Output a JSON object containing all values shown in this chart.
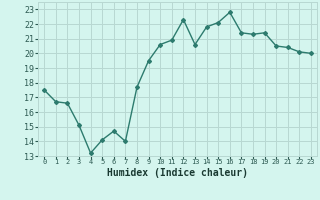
{
  "x": [
    0,
    1,
    2,
    3,
    4,
    5,
    6,
    7,
    8,
    9,
    10,
    11,
    12,
    13,
    14,
    15,
    16,
    17,
    18,
    19,
    20,
    21,
    22,
    23
  ],
  "y": [
    17.5,
    16.7,
    16.6,
    15.1,
    13.2,
    14.1,
    14.7,
    14.0,
    17.7,
    19.5,
    20.6,
    20.9,
    22.3,
    20.6,
    21.8,
    22.1,
    22.8,
    21.4,
    21.3,
    21.4,
    20.5,
    20.4,
    20.1,
    20.0
  ],
  "line_color": "#2d7b6e",
  "marker": "D",
  "marker_size": 2.0,
  "line_width": 1.0,
  "bg_color": "#d4f5ee",
  "grid_color": "#b8d8d2",
  "xlabel": "Humidex (Indice chaleur)",
  "xlabel_fontsize": 7,
  "ytick_fontsize": 6,
  "xtick_fontsize": 5,
  "ylabel_ticks": [
    13,
    14,
    15,
    16,
    17,
    18,
    19,
    20,
    21,
    22,
    23
  ],
  "ylim": [
    13,
    23.5
  ],
  "xlim": [
    -0.5,
    23.5
  ],
  "xtick_labels": [
    "0",
    "1",
    "2",
    "3",
    "4",
    "5",
    "6",
    "7",
    "8",
    "9",
    "10",
    "11",
    "12",
    "13",
    "14",
    "15",
    "16",
    "17",
    "18",
    "19",
    "20",
    "21",
    "22",
    "23"
  ]
}
